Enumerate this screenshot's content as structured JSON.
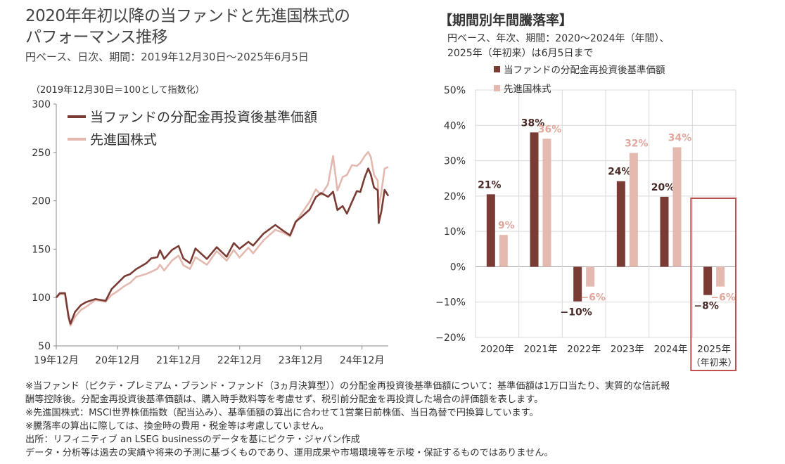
{
  "left_chart": {
    "title_line1": "2020年年初以降の当ファンドと先進国株式の",
    "title_line2": "パフォーマンス推移",
    "subtitle": "円ベース、日次、期間：2019年12月30日～2025年6月5日",
    "index_note": "（2019年12月30日＝100として指数化）"
  },
  "right_chart": {
    "title": "【期間別年間騰落率】",
    "subtitle_line1": "円ベース、年次、期間：2020～2024年（年間）、",
    "subtitle_line2": "2025年（年初来）は6月5日まで"
  },
  "colors": {
    "fund": "#7a3b34",
    "msci": "#e3b9b0",
    "highlight": "#c0504d",
    "grid": "#d9d9d9"
  },
  "chart_data": [
    {
      "type": "line",
      "ylim": [
        50,
        300
      ],
      "yticks": [
        50,
        100,
        150,
        200,
        250,
        300
      ],
      "xtick_labels": [
        "19年12月",
        "20年12月",
        "21年12月",
        "22年12月",
        "23年12月",
        "24年12月"
      ],
      "x_start": "2019-12-30",
      "x_end": "2025-06-05",
      "legend_position": "top-left",
      "series": [
        {
          "name": "当ファンドの分配金再投資後基準価額",
          "color": "#7a3b34",
          "points": [
            [
              "2019-12-30",
              100
            ],
            [
              "2020-01-20",
              104
            ],
            [
              "2020-02-20",
              105
            ],
            [
              "2020-03-12",
              82
            ],
            [
              "2020-03-24",
              72
            ],
            [
              "2020-04-20",
              85
            ],
            [
              "2020-05-25",
              93
            ],
            [
              "2020-06-25",
              94
            ],
            [
              "2020-08-20",
              98
            ],
            [
              "2020-10-20",
              97
            ],
            [
              "2020-11-25",
              110
            ],
            [
              "2020-12-25",
              113
            ],
            [
              "2021-02-10",
              122
            ],
            [
              "2021-03-15",
              125
            ],
            [
              "2021-04-20",
              128
            ],
            [
              "2021-06-20",
              135
            ],
            [
              "2021-07-20",
              141
            ],
            [
              "2021-08-25",
              143
            ],
            [
              "2021-09-10",
              148
            ],
            [
              "2021-10-05",
              140
            ],
            [
              "2021-11-20",
              150
            ],
            [
              "2021-12-30",
              152
            ],
            [
              "2022-01-27",
              140
            ],
            [
              "2022-03-08",
              136
            ],
            [
              "2022-04-10",
              152
            ],
            [
              "2022-06-17",
              139
            ],
            [
              "2022-08-15",
              152
            ],
            [
              "2022-10-13",
              143
            ],
            [
              "2022-11-25",
              155
            ],
            [
              "2022-12-29",
              150
            ],
            [
              "2023-02-20",
              158
            ],
            [
              "2023-03-20",
              155
            ],
            [
              "2023-05-20",
              165
            ],
            [
              "2023-07-31",
              175
            ],
            [
              "2023-09-15",
              170
            ],
            [
              "2023-10-27",
              163
            ],
            [
              "2023-11-30",
              178
            ],
            [
              "2023-12-29",
              183
            ],
            [
              "2024-02-20",
              192
            ],
            [
              "2024-03-29",
              203
            ],
            [
              "2024-04-30",
              208
            ],
            [
              "2024-06-10",
              205
            ],
            [
              "2024-07-10",
              208
            ],
            [
              "2024-08-05",
              190
            ],
            [
              "2024-09-05",
              195
            ],
            [
              "2024-10-01",
              188
            ],
            [
              "2024-10-31",
              198
            ],
            [
              "2024-11-29",
              210
            ],
            [
              "2024-12-20",
              210
            ],
            [
              "2025-01-15",
              223
            ],
            [
              "2025-02-05",
              233
            ],
            [
              "2025-02-20",
              228
            ],
            [
              "2025-03-12",
              215
            ],
            [
              "2025-04-03",
              210
            ],
            [
              "2025-04-09",
              177
            ],
            [
              "2025-04-25",
              190
            ],
            [
              "2025-05-14",
              210
            ],
            [
              "2025-06-05",
              205
            ]
          ]
        },
        {
          "name": "先進国株式",
          "color": "#e3b9b0",
          "points": [
            [
              "2019-12-30",
              100
            ],
            [
              "2020-01-20",
              103
            ],
            [
              "2020-02-20",
              104
            ],
            [
              "2020-03-12",
              80
            ],
            [
              "2020-03-24",
              70
            ],
            [
              "2020-04-20",
              80
            ],
            [
              "2020-05-25",
              88
            ],
            [
              "2020-06-25",
              89
            ],
            [
              "2020-08-20",
              97
            ],
            [
              "2020-10-20",
              96
            ],
            [
              "2020-11-25",
              104
            ],
            [
              "2020-12-25",
              105
            ],
            [
              "2021-02-10",
              112
            ],
            [
              "2021-03-15",
              116
            ],
            [
              "2021-04-20",
              120
            ],
            [
              "2021-06-20",
              124
            ],
            [
              "2021-07-20",
              127
            ],
            [
              "2021-08-25",
              131
            ],
            [
              "2021-09-10",
              133
            ],
            [
              "2021-10-05",
              128
            ],
            [
              "2021-11-20",
              139
            ],
            [
              "2021-12-30",
              142
            ],
            [
              "2022-01-27",
              133
            ],
            [
              "2022-03-08",
              130
            ],
            [
              "2022-04-10",
              143
            ],
            [
              "2022-06-17",
              133
            ],
            [
              "2022-08-15",
              148
            ],
            [
              "2022-10-13",
              139
            ],
            [
              "2022-11-25",
              148
            ],
            [
              "2022-12-29",
              141
            ],
            [
              "2023-02-20",
              152
            ],
            [
              "2023-03-20",
              147
            ],
            [
              "2023-05-20",
              158
            ],
            [
              "2023-07-31",
              170
            ],
            [
              "2023-09-15",
              168
            ],
            [
              "2023-10-27",
              162
            ],
            [
              "2023-11-30",
              177
            ],
            [
              "2023-12-29",
              186
            ],
            [
              "2024-02-20",
              200
            ],
            [
              "2024-03-29",
              211
            ],
            [
              "2024-04-30",
              206
            ],
            [
              "2024-06-10",
              218
            ],
            [
              "2024-07-10",
              245
            ],
            [
              "2024-08-05",
              210
            ],
            [
              "2024-09-05",
              225
            ],
            [
              "2024-10-01",
              228
            ],
            [
              "2024-10-31",
              236
            ],
            [
              "2024-11-29",
              236
            ],
            [
              "2024-12-20",
              240
            ],
            [
              "2025-01-15",
              245
            ],
            [
              "2025-02-05",
              250
            ],
            [
              "2025-02-20",
              246
            ],
            [
              "2025-03-12",
              228
            ],
            [
              "2025-04-03",
              220
            ],
            [
              "2025-04-09",
              192
            ],
            [
              "2025-04-25",
              210
            ],
            [
              "2025-05-14",
              232
            ],
            [
              "2025-06-05",
              235
            ]
          ]
        }
      ]
    },
    {
      "type": "bar",
      "ylim": [
        -20,
        50
      ],
      "yticks": [
        -20,
        -10,
        0,
        10,
        20,
        30,
        40,
        50
      ],
      "ytick_labels": [
        "−20%",
        "−10%",
        "0%",
        "10%",
        "20%",
        "30%",
        "40%",
        "50%"
      ],
      "categories": [
        "2020年",
        "2021年",
        "2022年",
        "2023年",
        "2024年",
        "2025年"
      ],
      "category_sublabels": [
        "",
        "",
        "",
        "",
        "",
        "（年初来）"
      ],
      "highlighted_category": "2025年",
      "legend_position": "top",
      "series": [
        {
          "name": "当ファンドの分配金再投資後基準価額",
          "color": "#7a3b34",
          "values": [
            20.5,
            38,
            -9.8,
            24.2,
            19.8,
            -8
          ],
          "labels": [
            "21%",
            "38%",
            "−10%",
            "24%",
            "20%",
            "−8%"
          ]
        },
        {
          "name": "先進国株式",
          "color": "#e3b9b0",
          "values": [
            9,
            36.2,
            -5.6,
            32.2,
            33.8,
            -5.6
          ],
          "labels": [
            "9%",
            "36%",
            "−6%",
            "32%",
            "34%",
            "−6%"
          ]
        }
      ]
    }
  ],
  "notes": [
    "※当ファンド（ピクテ・プレミアム・ブランド・ファンド（3ヵ月決算型））の分配金再投資後基準価額について：基準価額は1万口当たり、実質的な信託報",
    "酬等控除後。分配金再投資後基準価額は、購入時手数料等を考慮せず、税引前分配金を再投資した場合の評価額を表します。",
    "※先進国株式：MSCI世界株価指数（配当込み）、基準価額の算出に合わせて1営業日前株価、当日為替で円換算しています。",
    "※騰落率の算出に際しては、換金時の費用・税金等は考慮していません。",
    "出所：リフィニティブ an LSEG businessのデータを基にピクテ・ジャパン作成",
    "データ・分析等は過去の実績や将来の予測に基づくものであり、運用成果や市場環境等を示唆・保証するものではありません。"
  ]
}
